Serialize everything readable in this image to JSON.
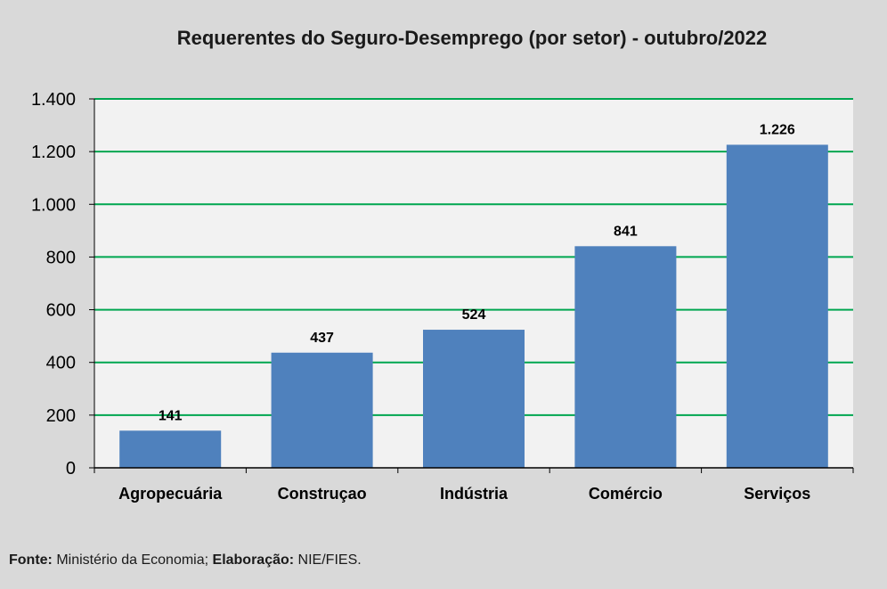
{
  "chart_data": {
    "type": "bar",
    "title": "Requerentes do Seguro-Desemprego (por setor) - outubro/2022",
    "categories": [
      "Agropecuária",
      "Construçao",
      "Indústria",
      "Comércio",
      "Serviços"
    ],
    "values": [
      141,
      437,
      524,
      841,
      1226
    ],
    "value_labels": [
      "141",
      "437",
      "524",
      "841",
      "1.226"
    ],
    "ylim": [
      0,
      1400
    ],
    "yticks": [
      0,
      200,
      400,
      600,
      800,
      1000,
      1200,
      1400
    ],
    "ytick_labels": [
      "0",
      "200",
      "400",
      "600",
      "800",
      "1.000",
      "1.200",
      "1.400"
    ],
    "xlabel": "",
    "ylabel": "",
    "grid": true,
    "colors": {
      "bar": "#4f81bd",
      "grid": "#00a650",
      "plot_bg": "#f2f2f2",
      "page_bg": "#d9d9d9"
    }
  },
  "source": {
    "fonte_label": "Fonte:",
    "fonte_value": " Ministério da Economia; ",
    "elaboracao_label": "Elaboração:",
    "elaboracao_value": " NIE/FIES."
  }
}
